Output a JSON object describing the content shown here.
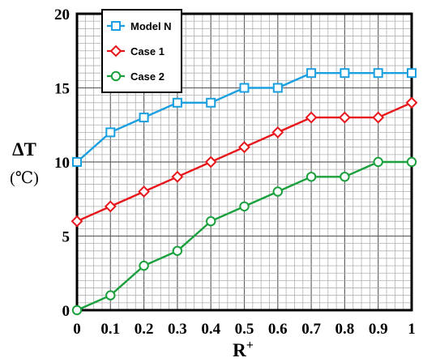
{
  "chart_data": {
    "type": "line",
    "x": [
      0,
      0.1,
      0.2,
      0.3,
      0.4,
      0.5,
      0.6,
      0.7,
      0.8,
      0.9,
      1
    ],
    "x_tick_labels": [
      "0",
      "0.1",
      "0.2",
      "0.3",
      "0.4",
      "0.5",
      "0.6",
      "0.7",
      "0.8",
      "0.9",
      "1"
    ],
    "y_tick_labels": [
      "0",
      "5",
      "10",
      "15",
      "20"
    ],
    "y_ticks": [
      0,
      5,
      10,
      15,
      20
    ],
    "xlabel": "R",
    "xlabel_superscript": "+",
    "ylabel": "ΔT",
    "ylabel_unit": "(℃)",
    "xlim": [
      0,
      1
    ],
    "ylim": [
      0,
      20
    ],
    "grid": true,
    "legend_position": "top-left",
    "series": [
      {
        "name": "Model N",
        "marker": "square",
        "color": "#1a9fe0",
        "values": [
          10,
          12,
          13,
          14,
          14,
          15,
          15,
          16,
          16,
          16,
          16
        ]
      },
      {
        "name": "Case 1",
        "marker": "diamond",
        "color": "#e8161a",
        "values": [
          6,
          7,
          8,
          9,
          10,
          11,
          12,
          13,
          13,
          13,
          14
        ]
      },
      {
        "name": "Case 2",
        "marker": "circle",
        "color": "#1aa03c",
        "values": [
          0,
          1,
          3,
          4,
          6,
          7,
          8,
          9,
          9,
          10,
          10
        ]
      }
    ]
  }
}
